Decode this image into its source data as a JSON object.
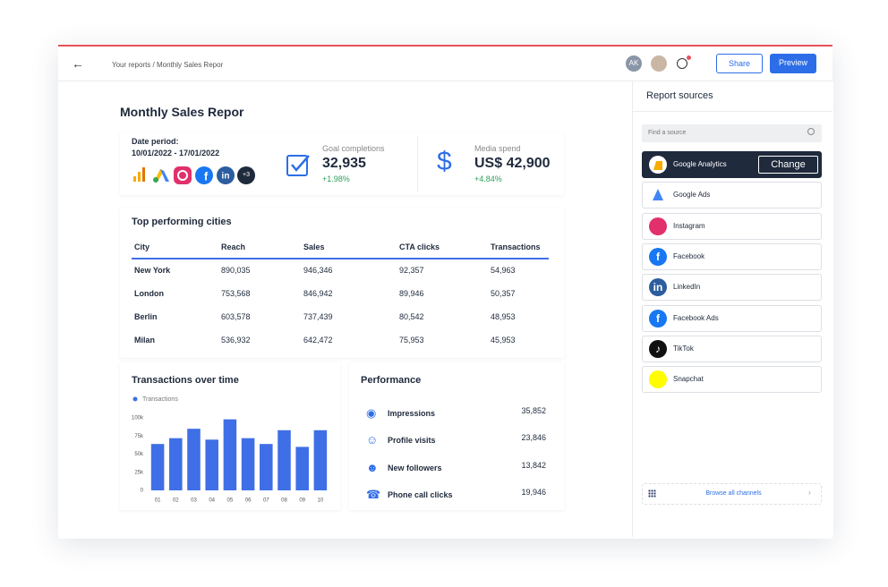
{
  "header": {
    "breadcrumb": "Your reports / Monthly Sales Repor",
    "avatar": "AK",
    "share": "Share",
    "preview": "Preview"
  },
  "report": {
    "title": "Monthly Sales Repor",
    "date_label": "Date period:",
    "date_range": "10/01/2022 - 17/01/2022",
    "more_sources": "+3"
  },
  "kpis": [
    {
      "label": "Goal completions",
      "value": "32,935",
      "change": "+1.98%"
    },
    {
      "label": "Media spend",
      "value": "US$ 42,900",
      "change": "+4.84%"
    }
  ],
  "table": {
    "title": "Top performing cities",
    "columns": [
      "City",
      "Reach",
      "Sales",
      "CTA clicks",
      "Transactions"
    ],
    "rows": [
      [
        "New York",
        "890,035",
        "946,346",
        "92,357",
        "54,963"
      ],
      [
        "London",
        "753,568",
        "846,942",
        "89,946",
        "50,357"
      ],
      [
        "Berlin",
        "603,578",
        "737,439",
        "80,542",
        "48,953"
      ],
      [
        "Milan",
        "536,932",
        "642,472",
        "75,953",
        "45,953"
      ]
    ]
  },
  "performance": {
    "title": "Performance",
    "items": [
      {
        "label": "Impressions",
        "value": "35,852"
      },
      {
        "label": "Profile visits",
        "value": "23,846"
      },
      {
        "label": "New followers",
        "value": "13,842"
      },
      {
        "label": "Phone call clicks",
        "value": "19,946"
      }
    ]
  },
  "sidebar": {
    "title": "Report sources",
    "search_placeholder": "Find a source",
    "change": "Change",
    "sources": [
      "Google Analytics",
      "Google Ads",
      "Instagram",
      "Facebook",
      "LinkedIn",
      "Facebook Ads",
      "TikTok",
      "Snapchat"
    ],
    "browse": "Browse all channels"
  },
  "chart_data": {
    "type": "bar",
    "title": "Transactions over time",
    "categories": [
      "01",
      "02",
      "03",
      "04",
      "05",
      "06",
      "07",
      "08",
      "09",
      "10"
    ],
    "series": [
      {
        "name": "Transactions",
        "color": "#3f6fe6",
        "values": [
          64000,
          72000,
          85000,
          70000,
          98000,
          72000,
          64000,
          83000,
          60000,
          83000
        ]
      }
    ],
    "ylim": [
      0,
      100000
    ],
    "yticks": [
      0,
      {
        "value": 25000,
        "label": "25k"
      },
      {
        "value": 50000,
        "label": "50k"
      },
      {
        "value": 75000,
        "label": "75k"
      },
      {
        "value": 100000,
        "label": "100k"
      }
    ]
  }
}
